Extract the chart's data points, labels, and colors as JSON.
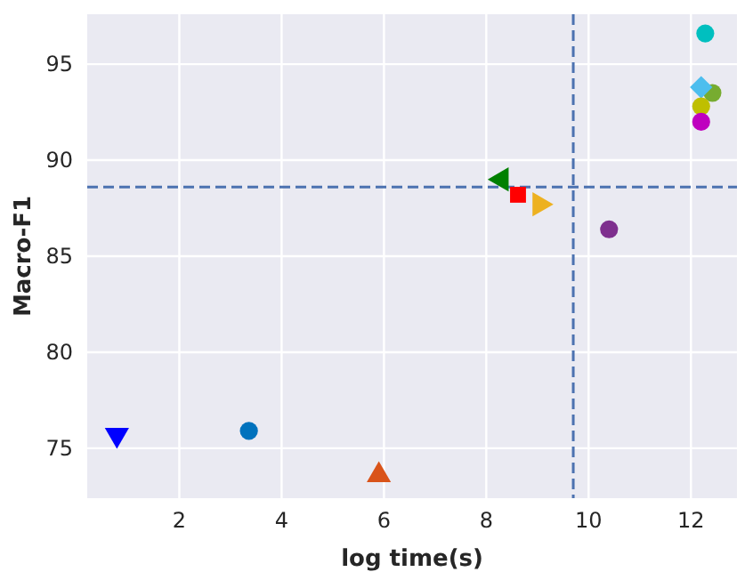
{
  "chart_data": {
    "type": "scatter",
    "xlabel": "log time(s)",
    "ylabel": "Macro-F1",
    "xlim": [
      0.2,
      12.9
    ],
    "xticks": [
      2,
      4,
      6,
      8,
      10,
      12
    ],
    "ylim": [
      72.4,
      97.6
    ],
    "yticks": [
      75,
      80,
      85,
      90,
      95
    ],
    "grid": true,
    "ref_lines": [
      {
        "axis": "y",
        "value": 88.6,
        "color": "#4c72b0",
        "line_style": "dashed"
      },
      {
        "axis": "x",
        "value": 9.7,
        "color": "#4c72b0",
        "line_style": "dashed"
      }
    ],
    "series": [
      {
        "color": "#0000ff",
        "marker": "triangle-down",
        "x": [
          0.78
        ],
        "values": [
          75.7
        ]
      },
      {
        "color": "#0072bd",
        "marker": "circle",
        "x": [
          3.36
        ],
        "values": [
          75.9
        ]
      },
      {
        "color": "#d95319",
        "marker": "triangle",
        "x": [
          5.9
        ],
        "values": [
          73.6
        ]
      },
      {
        "color": "#008000",
        "marker": "triangle-left",
        "x": [
          8.3
        ],
        "values": [
          89.0
        ]
      },
      {
        "color": "#ff0000",
        "marker": "square",
        "x": [
          8.62
        ],
        "values": [
          88.2
        ]
      },
      {
        "color": "#edb120",
        "marker": "triangle-right",
        "x": [
          9.04
        ],
        "values": [
          87.7
        ]
      },
      {
        "color": "#7e2f8e",
        "x": [
          10.4
        ],
        "values": [
          86.4
        ]
      },
      {
        "color": "#00bfbf",
        "marker": "circle",
        "x": [
          12.28
        ],
        "values": [
          96.6
        ]
      },
      {
        "color": "#77ac30",
        "x": [
          12.42
        ],
        "values": [
          93.5
        ]
      },
      {
        "color": "#4dbeee",
        "marker": "diamond",
        "x": [
          12.2
        ],
        "values": [
          93.8
        ]
      },
      {
        "color": "#bfbf00",
        "marker": "circle",
        "x": [
          12.2
        ],
        "values": [
          92.8
        ]
      },
      {
        "color": "#bf00bf",
        "x": [
          12.2
        ],
        "values": [
          92.0
        ]
      }
    ]
  }
}
